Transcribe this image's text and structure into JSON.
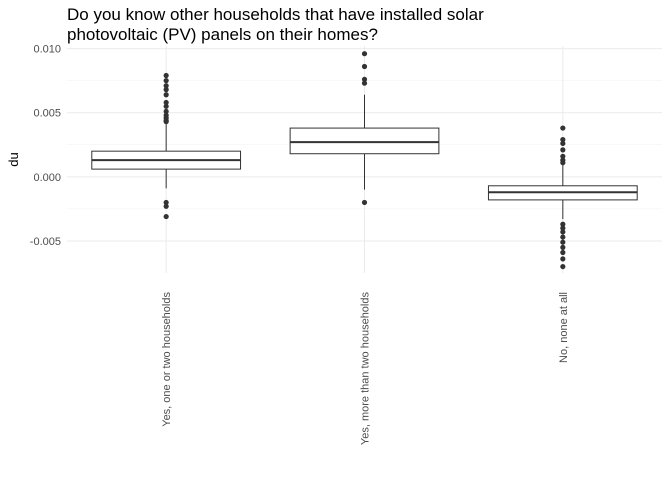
{
  "chart_data": {
    "type": "boxplot",
    "title": "Do you know other households that have installed solar\nphotovoltaic (PV) panels on their homes?",
    "xlabel": "",
    "ylabel": "du",
    "ylim": [
      -0.0075,
      0.0102
    ],
    "yticks": [
      -0.005,
      0.0,
      0.005,
      0.01
    ],
    "ytick_labels": [
      "-0.005",
      "0.000",
      "0.005",
      "0.010"
    ],
    "grid": true,
    "categories": [
      "Yes, one or two households",
      "Yes, more than two households",
      "No, none at all"
    ],
    "boxes": [
      {
        "category": "Yes, one or two households",
        "q1": 0.0006,
        "median": 0.0013,
        "q3": 0.002,
        "whisker_low": -0.0009,
        "whisker_high": 0.0041,
        "outliers": [
          0.0079,
          0.0075,
          0.0071,
          0.0068,
          0.0064,
          0.0058,
          0.0055,
          0.0051,
          0.0048,
          0.0046,
          0.0044,
          0.0043,
          -0.002,
          -0.0023,
          -0.0031
        ]
      },
      {
        "category": "Yes, more than two households",
        "q1": 0.0018,
        "median": 0.0027,
        "q3": 0.0038,
        "whisker_low": -0.001,
        "whisker_high": 0.0064,
        "outliers": [
          0.0096,
          0.0086,
          0.0076,
          0.0073,
          -0.002
        ]
      },
      {
        "category": "No, none at all",
        "q1": -0.0018,
        "median": -0.0012,
        "q3": -0.0007,
        "whisker_low": -0.0033,
        "whisker_high": 0.001,
        "outliers": [
          0.0038,
          0.0029,
          0.0026,
          0.0021,
          0.0016,
          0.0013,
          0.0011,
          -0.0037,
          -0.004,
          -0.0043,
          -0.0047,
          -0.0051,
          -0.0055,
          -0.0059,
          -0.0064,
          -0.007
        ]
      }
    ]
  }
}
